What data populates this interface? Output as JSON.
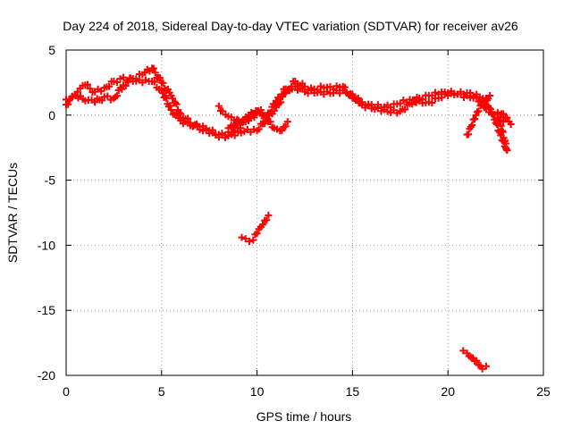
{
  "chart_data": {
    "type": "scatter",
    "title": "Day 224 of 2018, Sidereal Day-to-day VTEC variation (SDTVAR) for receiver av26",
    "xlabel": "GPS time / hours",
    "ylabel": "SDTVAR / TECUs",
    "xlim": [
      0,
      25
    ],
    "ylim": [
      -20,
      5
    ],
    "xticks": [
      0,
      5,
      10,
      15,
      20,
      25
    ],
    "yticks": [
      5,
      0,
      -5,
      -10,
      -15,
      -20
    ],
    "grid": true,
    "marker": "+",
    "color": "#ff0000",
    "series": [
      {
        "name": "main trace 1",
        "points": [
          [
            0,
            0.8
          ],
          [
            0.3,
            1.4
          ],
          [
            0.6,
            1.8
          ],
          [
            1,
            2.3
          ],
          [
            1.5,
            1.8
          ],
          [
            2,
            2.1
          ],
          [
            2.5,
            2.6
          ],
          [
            3,
            2.9
          ],
          [
            3.5,
            2.6
          ],
          [
            4,
            2.5
          ],
          [
            4.5,
            2.6
          ],
          [
            5,
            1.9
          ],
          [
            5.5,
            0.4
          ],
          [
            6,
            -0.4
          ],
          [
            6.5,
            -0.8
          ],
          [
            7,
            -0.9
          ],
          [
            7.5,
            -1.2
          ],
          [
            8,
            -1.5
          ],
          [
            8.5,
            -1.3
          ],
          [
            9,
            -1
          ],
          [
            9.5,
            -0.3
          ],
          [
            10,
            0.2
          ],
          [
            10.5,
            -0.2
          ],
          [
            11,
            1.1
          ],
          [
            11.5,
            2
          ],
          [
            12,
            2.2
          ],
          [
            12.5,
            1.8
          ],
          [
            13,
            1.7
          ],
          [
            13.5,
            1.6
          ],
          [
            14,
            1.7
          ],
          [
            14.5,
            1.9
          ],
          [
            15,
            1.6
          ],
          [
            15.5,
            0.8
          ],
          [
            16,
            0.5
          ],
          [
            16.5,
            0.3
          ],
          [
            17,
            0.2
          ],
          [
            17.5,
            0.3
          ],
          [
            18,
            0.9
          ],
          [
            18.5,
            1.3
          ],
          [
            19,
            1.5
          ],
          [
            19.5,
            1.6
          ],
          [
            20,
            1.7
          ],
          [
            20.5,
            1.6
          ],
          [
            21,
            1.5
          ],
          [
            21.5,
            1.4
          ],
          [
            22,
            0.5
          ],
          [
            22.3,
            0.1
          ],
          [
            22.6,
            -0.2
          ],
          [
            22.9,
            -0.5
          ]
        ]
      },
      {
        "name": "main trace 2",
        "points": [
          [
            0,
            1.2
          ],
          [
            0.5,
            1.5
          ],
          [
            1,
            1.1
          ],
          [
            1.5,
            1
          ],
          [
            2,
            1.4
          ],
          [
            2.5,
            1.3
          ],
          [
            3,
            2.3
          ],
          [
            3.5,
            2.8
          ],
          [
            4,
            3.1
          ],
          [
            4.5,
            3.6
          ],
          [
            5,
            2.5
          ],
          [
            5.5,
            1.5
          ],
          [
            6,
            0.1
          ],
          [
            6.5,
            -0.6
          ],
          [
            7,
            -1.1
          ],
          [
            7.5,
            -1.4
          ],
          [
            8,
            -1.7
          ],
          [
            8.5,
            -1.6
          ],
          [
            9,
            -1.3
          ],
          [
            9.5,
            -1.1
          ],
          [
            10,
            -1.2
          ],
          [
            10.5,
            -0.3
          ],
          [
            11,
            0.6
          ],
          [
            11.5,
            1.7
          ],
          [
            12,
            2.6
          ],
          [
            12.5,
            2.2
          ],
          [
            13,
            2
          ],
          [
            13.5,
            2.1
          ],
          [
            14,
            2
          ],
          [
            14.5,
            2.2
          ],
          [
            15,
            1.3
          ],
          [
            15.5,
            1
          ],
          [
            16,
            0.8
          ],
          [
            16.5,
            0.6
          ],
          [
            17,
            0.6
          ],
          [
            17.5,
            0.9
          ],
          [
            18,
            1.2
          ],
          [
            18.5,
            1.1
          ],
          [
            19,
            1
          ],
          [
            19.5,
            1.3
          ],
          [
            20,
            1.5
          ],
          [
            20.5,
            1.6
          ],
          [
            21,
            1.7
          ],
          [
            21.5,
            1.6
          ],
          [
            22,
            1.3
          ]
        ]
      },
      {
        "name": "loop arcs",
        "points": [
          [
            8,
            0.7
          ],
          [
            8.2,
            0.3
          ],
          [
            8.5,
            -0.1
          ],
          [
            8.8,
            -0.4
          ],
          [
            9.1,
            -0.6
          ],
          [
            9.4,
            -0.5
          ],
          [
            9.7,
            -0.2
          ],
          [
            10,
            0.2
          ],
          [
            10.2,
            0.4
          ],
          [
            8.5,
            -1
          ],
          [
            8.8,
            -0.9
          ],
          [
            9.1,
            -0.6
          ],
          [
            9.4,
            -0.2
          ],
          [
            9.7,
            0.2
          ],
          [
            10,
            0.3
          ],
          [
            10.3,
            0
          ],
          [
            10.6,
            -0.5
          ],
          [
            10.9,
            -1
          ],
          [
            11.2,
            -1.2
          ],
          [
            11.4,
            -0.9
          ],
          [
            11.6,
            -0.5
          ]
        ]
      },
      {
        "name": "late arcs",
        "points": [
          [
            21,
            -1.5
          ],
          [
            21.2,
            -0.9
          ],
          [
            21.4,
            -0.3
          ],
          [
            21.6,
            0.3
          ],
          [
            21.8,
            0.8
          ],
          [
            22,
            1.2
          ],
          [
            22.2,
            1.5
          ],
          [
            21.9,
            1.1
          ],
          [
            22.1,
            0.7
          ],
          [
            22.3,
            0.1
          ],
          [
            22.5,
            -0.6
          ],
          [
            22.7,
            -1.3
          ],
          [
            22.9,
            -2
          ],
          [
            23.1,
            -2.7
          ],
          [
            22.6,
            0.2
          ],
          [
            22.8,
            0.1
          ],
          [
            23,
            -0.2
          ],
          [
            23.2,
            -0.5
          ],
          [
            23.3,
            -0.7
          ]
        ]
      },
      {
        "name": "outlier arc A",
        "points": [
          [
            9.2,
            -9.4
          ],
          [
            9.4,
            -9.5
          ],
          [
            9.6,
            -9.7
          ],
          [
            9.8,
            -9.6
          ],
          [
            10,
            -9.1
          ],
          [
            10.2,
            -8.6
          ],
          [
            10.4,
            -8.1
          ],
          [
            10.6,
            -7.7
          ]
        ]
      },
      {
        "name": "outlier arc B",
        "points": [
          [
            20.8,
            -18.1
          ],
          [
            21,
            -18.3
          ],
          [
            21.2,
            -18.6
          ],
          [
            21.4,
            -18.9
          ],
          [
            21.6,
            -19.2
          ],
          [
            21.8,
            -19.5
          ],
          [
            22,
            -19.3
          ]
        ]
      }
    ]
  }
}
